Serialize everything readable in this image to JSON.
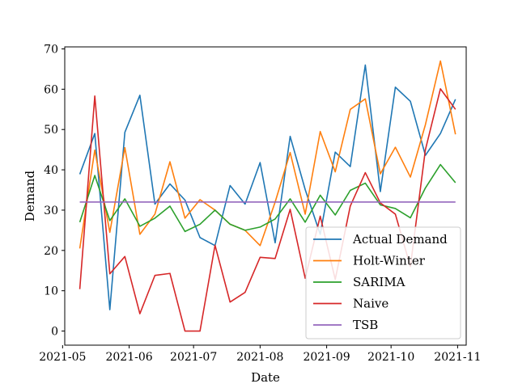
{
  "chart_data": {
    "type": "line",
    "xlabel": "Date",
    "ylabel": "Demand",
    "x_axis_type": "date",
    "xlim": [
      "2021-05-02",
      "2021-11-05"
    ],
    "ylim": [
      -3.5,
      70.5
    ],
    "x_ticks": [
      "2021-05-01",
      "2021-06-01",
      "2021-07-01",
      "2021-08-01",
      "2021-09-01",
      "2021-10-01",
      "2021-11-01"
    ],
    "x_tick_labels": [
      "2021-05",
      "2021-06",
      "2021-07",
      "2021-08",
      "2021-09",
      "2021-10",
      "2021-11"
    ],
    "y_ticks": [
      0,
      10,
      20,
      30,
      40,
      50,
      60,
      70
    ],
    "y_tick_labels": [
      "0",
      "10",
      "20",
      "30",
      "40",
      "50",
      "60",
      "70"
    ],
    "grid": false,
    "legend_position": "lower-right",
    "x": [
      "2021-05-09",
      "2021-05-16",
      "2021-05-23",
      "2021-05-30",
      "2021-06-06",
      "2021-06-13",
      "2021-06-20",
      "2021-06-27",
      "2021-07-04",
      "2021-07-11",
      "2021-07-18",
      "2021-07-25",
      "2021-08-01",
      "2021-08-08",
      "2021-08-15",
      "2021-08-22",
      "2021-08-29",
      "2021-09-05",
      "2021-09-12",
      "2021-09-19",
      "2021-09-26",
      "2021-10-03",
      "2021-10-10",
      "2021-10-17",
      "2021-10-24",
      "2021-10-31"
    ],
    "series": [
      {
        "name": "Actual Demand",
        "color": "#1f77b4",
        "values": [
          38.9,
          49.0,
          5.3,
          49.3,
          58.5,
          31.5,
          36.5,
          32.5,
          23.2,
          21.2,
          36.1,
          31.5,
          41.8,
          21.9,
          48.3,
          35.1,
          24.0,
          44.4,
          40.8,
          66.0,
          34.6,
          60.5,
          57.0,
          43.6,
          49.0,
          57.5
        ]
      },
      {
        "name": "Holt-Winter",
        "color": "#ff7f0e",
        "values": [
          20.5,
          44.9,
          24.5,
          45.5,
          24.0,
          29.0,
          42.0,
          28.0,
          32.6,
          30.0,
          26.5,
          25.0,
          21.2,
          32.0,
          44.3,
          29.0,
          49.5,
          39.5,
          55.0,
          57.6,
          39.0,
          45.6,
          38.2,
          51.2,
          67.0,
          48.8
        ]
      },
      {
        "name": "SARIMA",
        "color": "#2ca02c",
        "values": [
          27.0,
          38.6,
          27.4,
          32.8,
          26.0,
          28.0,
          31.0,
          24.7,
          26.5,
          30.0,
          26.5,
          25.0,
          25.8,
          27.8,
          32.8,
          27.0,
          33.7,
          28.8,
          34.9,
          36.7,
          31.3,
          30.4,
          28.1,
          35.5,
          41.3,
          36.8
        ]
      },
      {
        "name": "Naive",
        "color": "#d62728",
        "values": [
          10.4,
          58.3,
          14.2,
          18.5,
          4.3,
          13.8,
          14.3,
          0.0,
          0.0,
          21.3,
          7.2,
          9.6,
          18.3,
          18.0,
          30.2,
          13.1,
          28.5,
          12.8,
          31.0,
          39.3,
          31.8,
          29.0,
          16.0,
          45.0,
          60.1,
          55.0
        ]
      },
      {
        "name": "TSB",
        "color": "#9467bd",
        "values": [
          32.0,
          32.0,
          32.0,
          32.0,
          32.0,
          32.0,
          32.0,
          32.0,
          32.0,
          32.0,
          32.0,
          32.0,
          32.0,
          32.0,
          32.0,
          32.0,
          32.0,
          32.0,
          32.0,
          32.0,
          32.0,
          32.0,
          32.0,
          32.0,
          32.0,
          32.0
        ]
      }
    ]
  }
}
